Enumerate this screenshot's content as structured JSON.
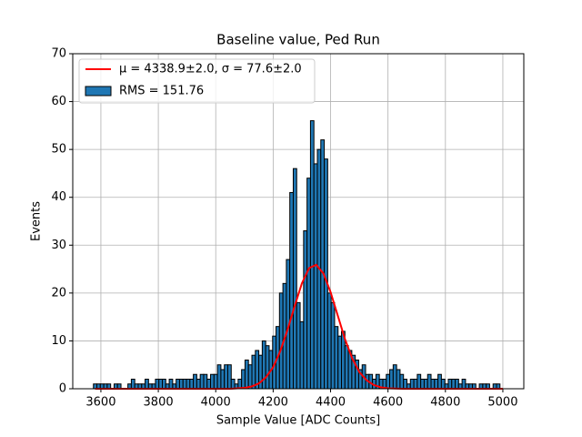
{
  "chart_data": {
    "type": "histogram",
    "title": "Baseline value, Ped Run",
    "x_label": "Sample Value [ADC Counts]",
    "y_label": "Events",
    "name": "RMS = 151.76",
    "color": "#1f77b4",
    "edge_color": "#000000",
    "bins": [
      3574,
      3586,
      3598,
      3610,
      3622,
      3634,
      3646,
      3658,
      3670,
      3682,
      3694,
      3706,
      3718,
      3730,
      3742,
      3754,
      3766,
      3778,
      3790,
      3802,
      3814,
      3826,
      3838,
      3850,
      3862,
      3874,
      3886,
      3898,
      3910,
      3922,
      3934,
      3946,
      3958,
      3970,
      3982,
      3994,
      4006,
      4018,
      4030,
      4042,
      4054,
      4066,
      4078,
      4090,
      4102,
      4114,
      4126,
      4138,
      4150,
      4162,
      4174,
      4186,
      4198,
      4210,
      4222,
      4234,
      4246,
      4258,
      4270,
      4282,
      4294,
      4306,
      4318,
      4330,
      4342,
      4354,
      4366,
      4378,
      4390,
      4402,
      4414,
      4426,
      4438,
      4450,
      4462,
      4474,
      4486,
      4498,
      4510,
      4522,
      4534,
      4546,
      4558,
      4570,
      4582,
      4594,
      4606,
      4618,
      4630,
      4642,
      4654,
      4666,
      4678,
      4690,
      4702,
      4714,
      4726,
      4738,
      4750,
      4762,
      4774,
      4786,
      4798,
      4810,
      4822,
      4834,
      4846,
      4858,
      4870,
      4882,
      4894,
      4906,
      4918,
      4930,
      4942,
      4954,
      4966,
      4978,
      4990,
      5002
    ],
    "values": [
      1,
      1,
      1,
      1,
      1,
      0,
      1,
      1,
      0,
      0,
      1,
      2,
      1,
      1,
      1,
      2,
      1,
      1,
      2,
      2,
      2,
      1,
      2,
      1,
      2,
      2,
      2,
      2,
      2,
      3,
      2,
      3,
      3,
      2,
      3,
      3,
      5,
      4,
      5,
      5,
      2,
      1,
      2,
      4,
      6,
      5,
      7,
      8,
      7,
      10,
      9,
      8,
      11,
      13,
      20,
      22,
      27,
      41,
      46,
      18,
      14,
      33,
      44,
      56,
      47,
      50,
      52,
      48,
      20,
      18,
      13,
      11,
      12,
      9,
      8,
      7,
      6,
      4,
      5,
      3,
      3,
      2,
      3,
      2,
      2,
      3,
      4,
      5,
      4,
      3,
      2,
      1,
      2,
      2,
      3,
      2,
      2,
      3,
      2,
      2,
      3,
      2,
      1,
      2,
      2,
      2,
      1,
      2,
      1,
      1,
      1,
      0,
      1,
      1,
      1,
      0,
      1,
      1,
      0
    ],
    "series": [
      {
        "name": "μ = 4338.9±2.0, σ = 77.6±2.0",
        "color": "#ff0000",
        "x": [
          3580,
          4000,
          4050,
          4100,
          4125,
          4150,
          4175,
          4200,
          4225,
          4250,
          4275,
          4300,
          4325,
          4350,
          4375,
          4400,
          4425,
          4450,
          4475,
          4500,
          4525,
          4550,
          4575,
          4600,
          4650,
          5000
        ],
        "values": [
          0,
          0,
          0,
          0.18,
          0.47,
          1.1,
          2.4,
          4.5,
          7.9,
          12.3,
          17.3,
          22.0,
          25.2,
          25.9,
          24.1,
          20.2,
          15.3,
          10.4,
          6.4,
          3.5,
          1.8,
          0.8,
          0.3,
          0.1,
          0,
          0
        ]
      }
    ],
    "xlim": [
      3502,
      5073
    ],
    "ylim": [
      0,
      70
    ],
    "xticks": [
      3600,
      3800,
      4000,
      4200,
      4400,
      4600,
      4800,
      5000
    ],
    "yticks": [
      0,
      10,
      20,
      30,
      40,
      50,
      60,
      70
    ],
    "grid": true,
    "legend": "upper left"
  }
}
